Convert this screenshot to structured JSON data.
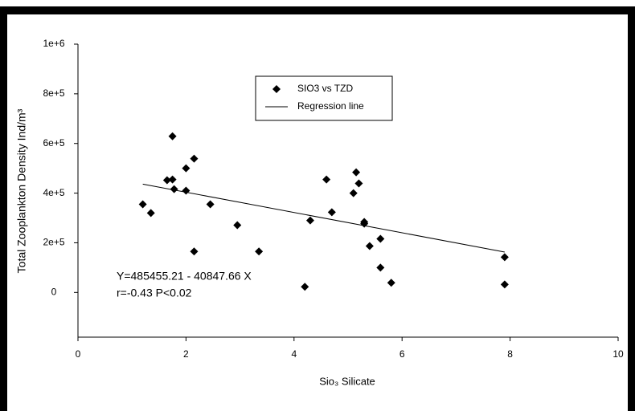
{
  "chart_data": {
    "type": "scatter",
    "x_label": "Sio₃ Silicate",
    "y_label": "Total Zooplankton Density Ind/m³",
    "annotations": [
      "Y=485455.21 - 40847.66 X",
      "r=-0.43 P<0.02"
    ],
    "xlim": [
      0,
      10
    ],
    "xticks": [
      0,
      2,
      4,
      6,
      8,
      10
    ],
    "ylim": [
      -180000,
      1000000
    ],
    "yticks": [
      0,
      {
        "value": 200000,
        "label": "2e+5"
      },
      {
        "value": 400000,
        "label": "4e+5"
      },
      {
        "value": 600000,
        "label": "6e+5"
      },
      {
        "value": 800000,
        "label": "8e+5"
      },
      {
        "value": 1000000,
        "label": "1e+6"
      }
    ],
    "legend": "top-center",
    "series": [
      {
        "name": "SIO3 vs TZD",
        "color": "#000000",
        "kind": "points",
        "x": [
          1.2,
          1.35,
          1.65,
          1.75,
          1.75,
          1.78,
          2.0,
          2.0,
          2.15,
          2.15,
          2.45,
          2.95,
          3.35,
          4.2,
          4.3,
          4.6,
          4.7,
          5.1,
          5.15,
          5.2,
          5.3,
          5.3,
          5.4,
          5.6,
          5.6,
          5.8,
          7.9,
          7.9
        ],
        "values": [
          355000,
          320000,
          452000,
          455000,
          629000,
          416000,
          500000,
          410000,
          539000,
          165000,
          355000,
          271000,
          165000,
          23000,
          290000,
          455000,
          323000,
          400000,
          484000,
          439000,
          284000,
          277000,
          187000,
          216000,
          100000,
          39000,
          142000,
          32000
        ]
      },
      {
        "name": "Regression line",
        "color": "#000000",
        "kind": "line",
        "x": [
          1.2,
          7.9
        ],
        "values": [
          436438,
          162759
        ]
      }
    ]
  }
}
